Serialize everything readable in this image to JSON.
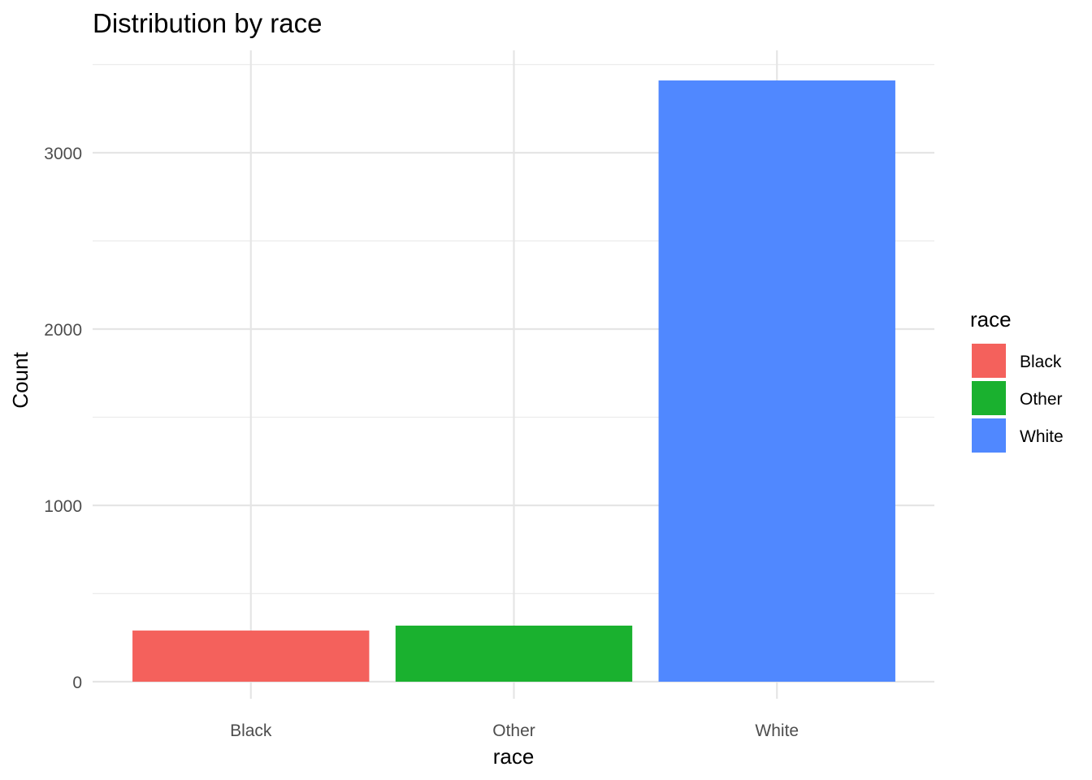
{
  "chart_data": {
    "type": "bar",
    "title": "Distribution by race",
    "xlabel": "race",
    "ylabel": "Count",
    "categories": [
      "Black",
      "Other",
      "White"
    ],
    "values": [
      290,
      318,
      3410
    ],
    "colors": [
      "#F8766D",
      "#00BA38",
      "#619CFF"
    ],
    "bar_colors_rendered": [
      "#F4615C",
      "#1AB12F",
      "#5088FF"
    ],
    "ylim": [
      0,
      3500
    ],
    "y_ticks": [
      0,
      1000,
      2000,
      3000
    ],
    "y_tick_labels": [
      "0",
      "1000",
      "2000",
      "3000"
    ],
    "grid": true,
    "legend": {
      "title": "race",
      "position": "right",
      "items": [
        "Black",
        "Other",
        "White"
      ]
    }
  }
}
